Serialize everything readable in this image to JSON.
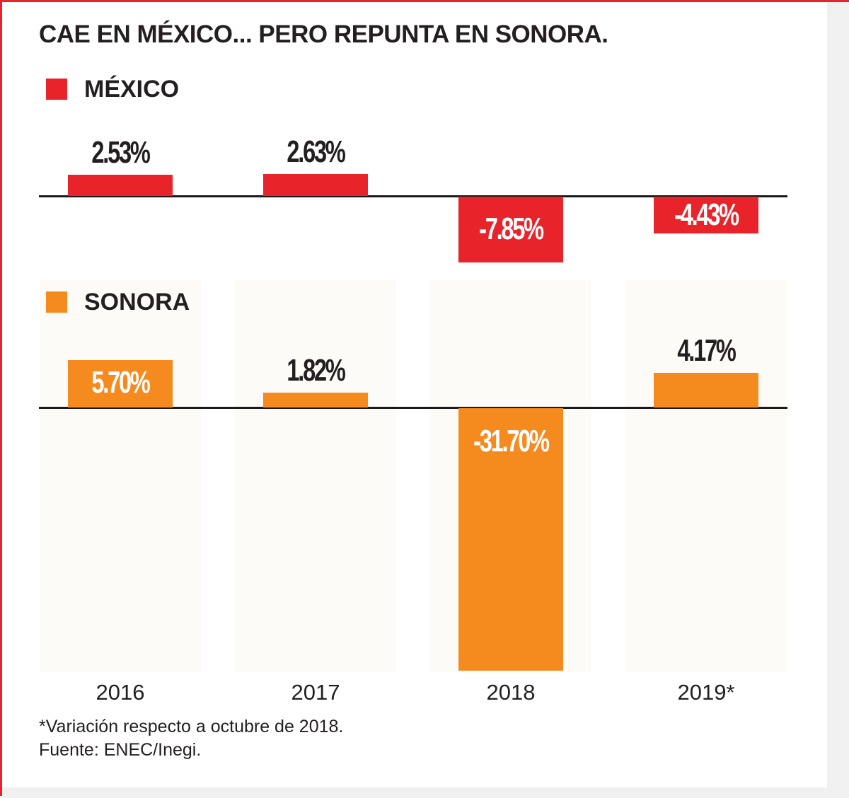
{
  "colors": {
    "mexico": "#e8232a",
    "sonora": "#f58a1f",
    "frame": "#e8232a"
  },
  "chart_data": {
    "type": "bar",
    "title": "CAE EN MÉXICO... PERO REPUNTA EN SONORA.",
    "categories": [
      "2016",
      "2017",
      "2018",
      "2019*"
    ],
    "series": [
      {
        "name": "MÉXICO",
        "values": [
          2.53,
          2.63,
          -7.85,
          -4.43
        ],
        "labels": [
          "2.53%",
          "2.63%",
          "-7.85%",
          "-4.43%"
        ]
      },
      {
        "name": "SONORA",
        "values": [
          5.7,
          1.82,
          -31.7,
          4.17
        ],
        "labels": [
          "5.70%",
          "1.82%",
          "-31.70%",
          "4.17%"
        ]
      }
    ],
    "footnote": "*Variación respecto a octubre de 2018.",
    "source": "Fuente: ENEC/Inegi."
  }
}
